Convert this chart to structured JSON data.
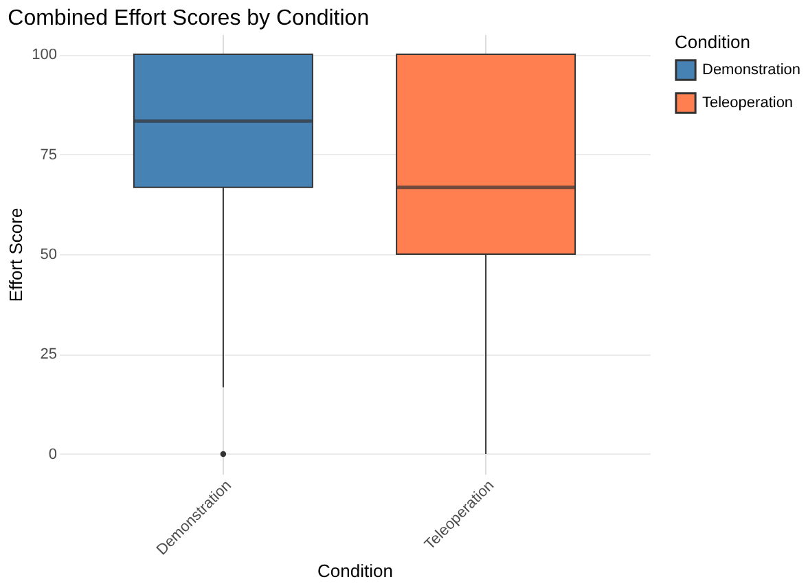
{
  "chart_data": {
    "type": "box",
    "title": "Combined Effort Scores by Condition",
    "xlabel": "Condition",
    "ylabel": "Effort Score",
    "legend_title": "Condition",
    "categories": [
      "Demonstration",
      "Teleoperation"
    ],
    "series": [
      {
        "name": "Demonstration",
        "color": "#4682b4",
        "boxes": [
          {
            "low": 16.7,
            "q1": 66.7,
            "median": 83.3,
            "q3": 100,
            "high": 100,
            "outliers": [
              0
            ]
          },
          null
        ]
      },
      {
        "name": "Teleoperation",
        "color": "#ff7f50",
        "boxes": [
          null,
          {
            "low": 0,
            "q1": 50,
            "median": 66.7,
            "q3": 100,
            "high": 100
          }
        ]
      }
    ],
    "ylim": [
      -5,
      105
    ],
    "yticks": [
      0,
      25,
      50,
      75,
      100
    ],
    "grid": true,
    "legend": "right"
  }
}
